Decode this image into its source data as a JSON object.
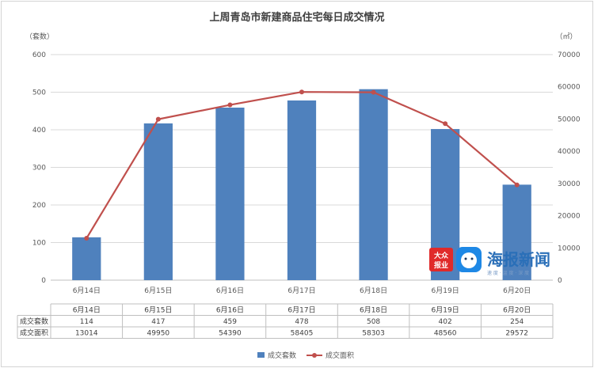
{
  "chart_data": {
    "type": "bar",
    "title": "上周青岛市新建商品住宅每日成交情况",
    "y_left_unit": "（套数）",
    "y_right_unit": "（㎡）",
    "categories": [
      "6月14日",
      "6月15日",
      "6月16日",
      "6月17日",
      "6月18日",
      "6月19日",
      "6月20日"
    ],
    "y_left_ticks": [
      0,
      100,
      200,
      300,
      400,
      500,
      600
    ],
    "y_right_ticks": [
      0,
      10000,
      20000,
      30000,
      40000,
      50000,
      60000,
      70000
    ],
    "ylim_left": [
      0,
      600
    ],
    "ylim_right": [
      0,
      70000
    ],
    "grid": true,
    "legend_placement": "bottom",
    "series": [
      {
        "name": "成交套数",
        "type": "bar",
        "axis": "left",
        "color": "#4f81bd",
        "values": [
          114,
          417,
          459,
          478,
          508,
          402,
          254
        ]
      },
      {
        "name": "成交面积",
        "type": "line",
        "axis": "right",
        "color": "#c0504d",
        "values": [
          13014,
          49950,
          54390,
          58405,
          58303,
          48560,
          29572
        ]
      }
    ]
  },
  "watermark": {
    "badge_line1": "大众",
    "badge_line2": "报业",
    "brand": "海报新闻",
    "slogan": "速 度 · 温 度 · 深 度"
  }
}
